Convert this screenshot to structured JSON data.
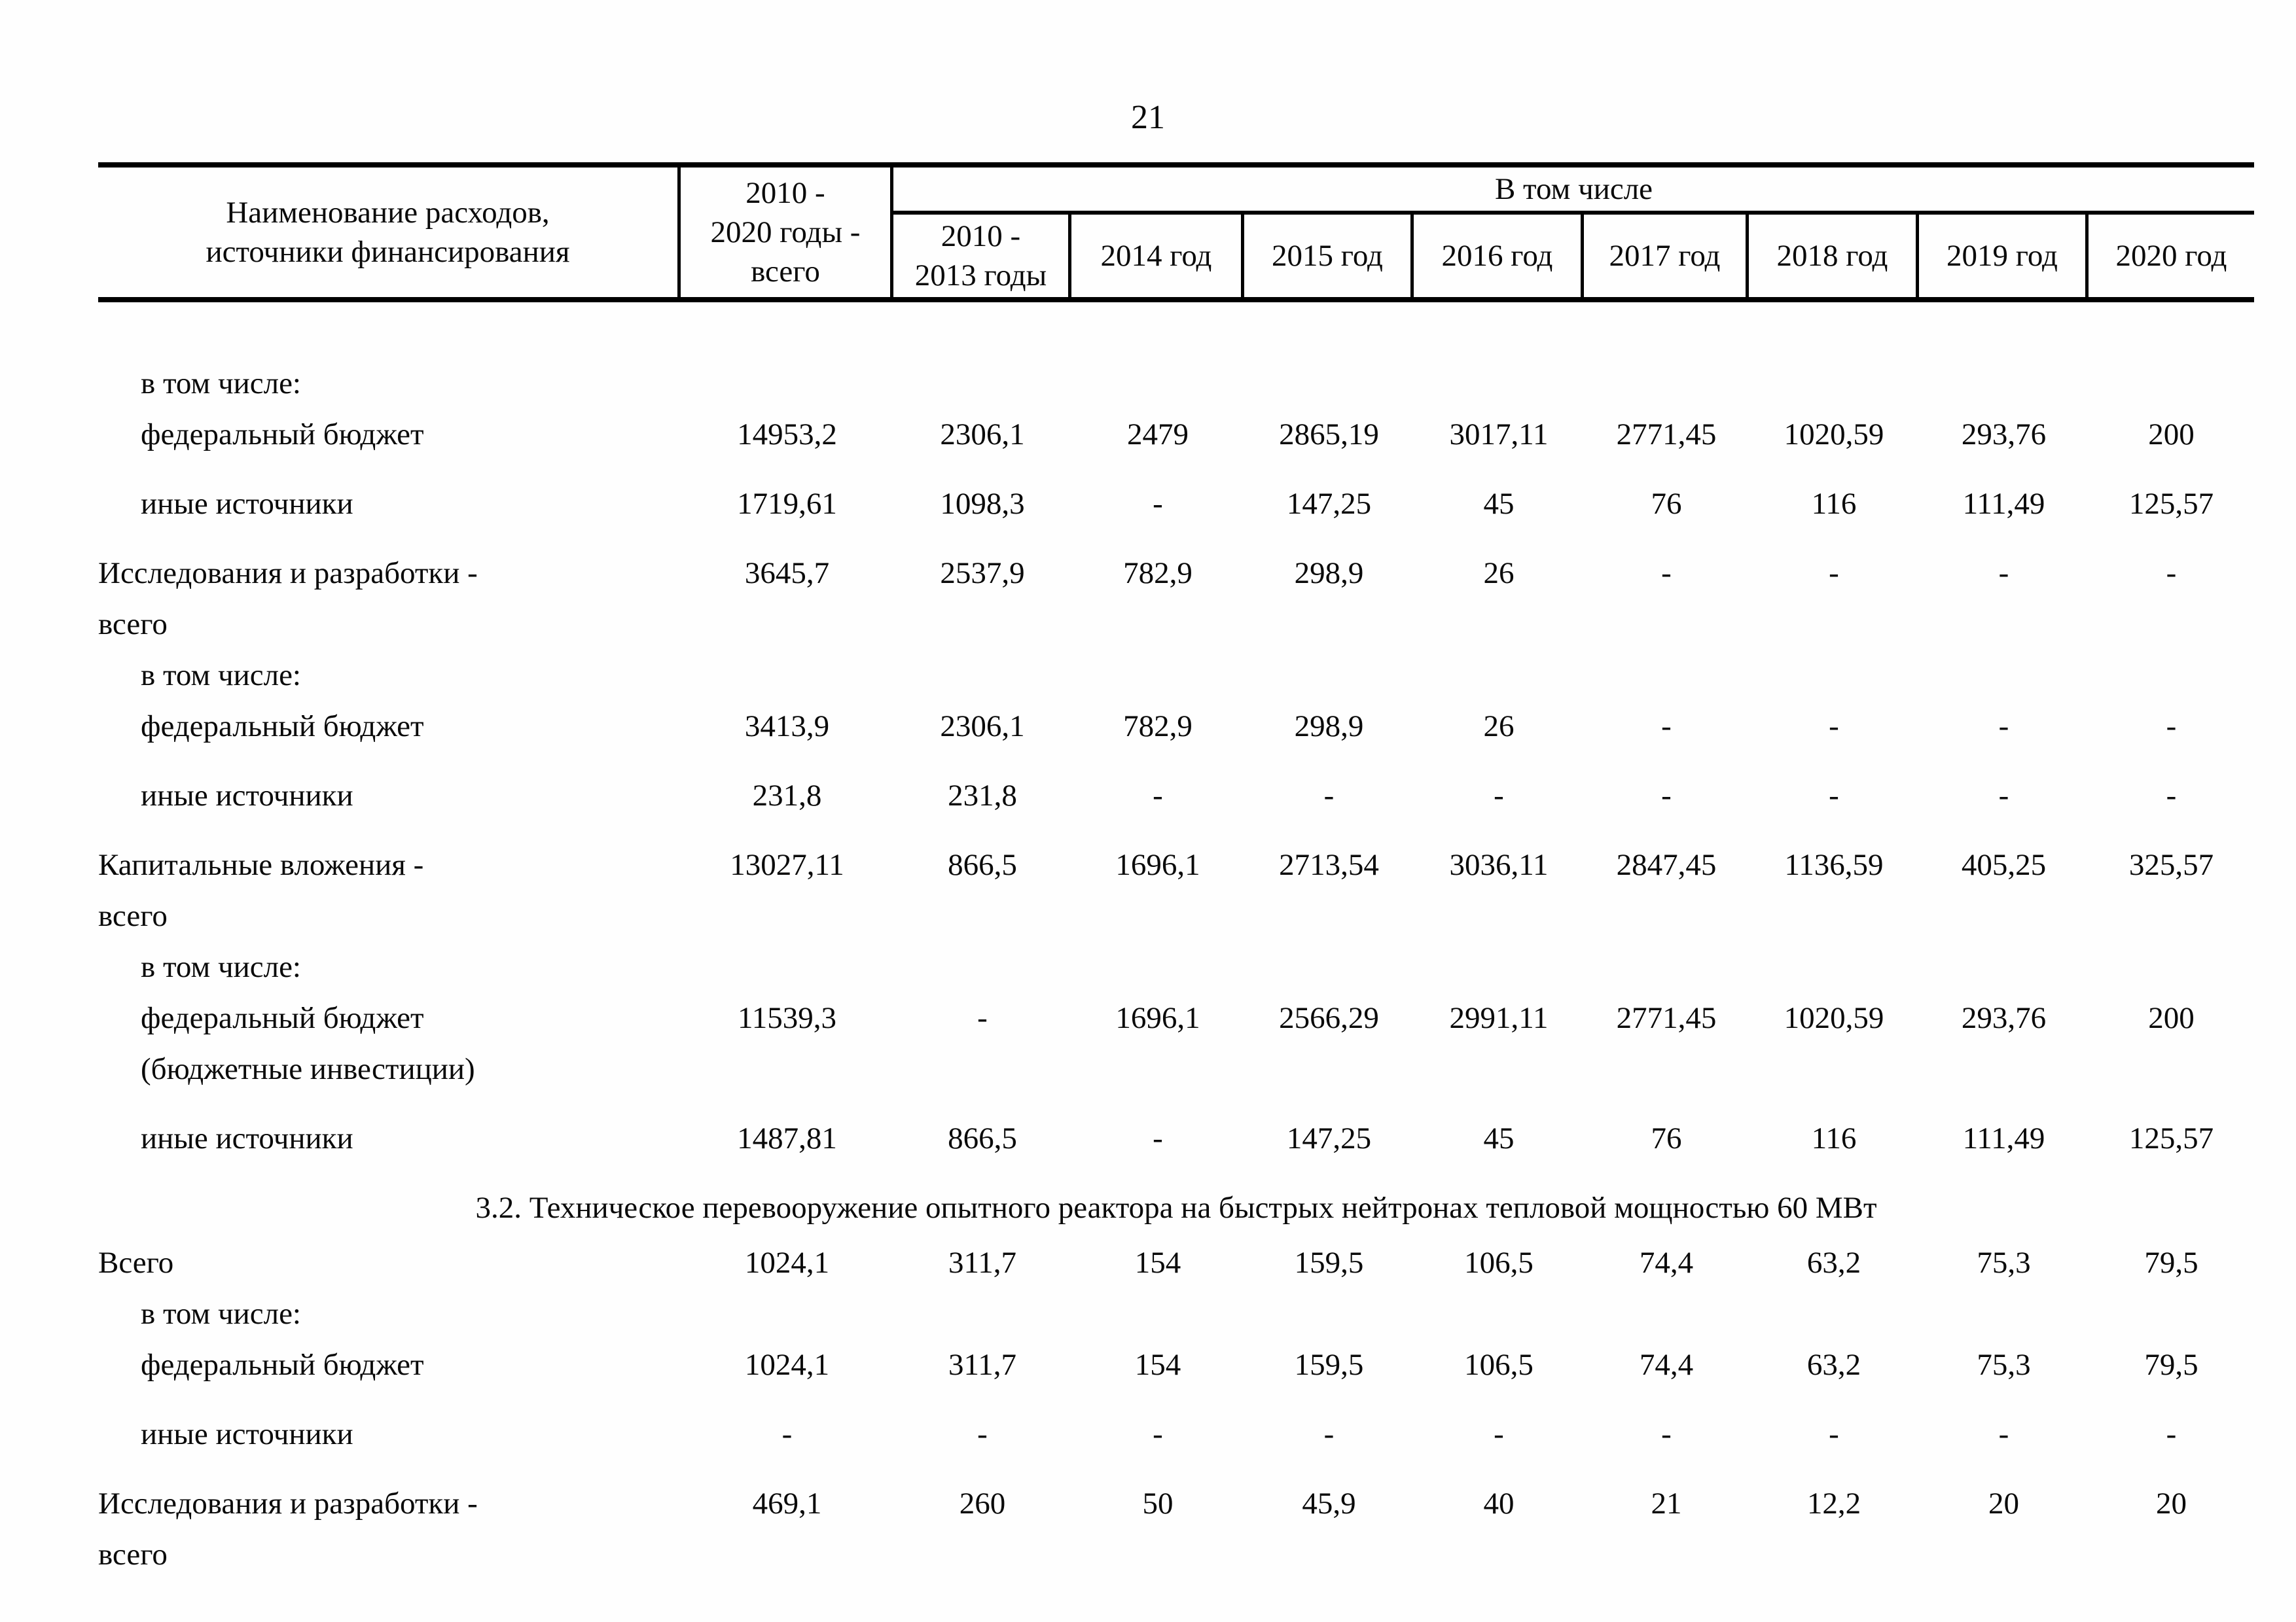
{
  "page": {
    "number": "21"
  },
  "table": {
    "header": {
      "name_col_lines": [
        "Наименование расходов,",
        "источники финансирования"
      ],
      "total_col_lines": [
        "2010 -",
        "2020 годы -",
        "всего"
      ],
      "group_label": "В том числе",
      "year_cols": [
        {
          "lines": [
            "2010 -",
            "2013 годы"
          ]
        },
        {
          "lines": [
            "2014 год"
          ]
        },
        {
          "lines": [
            "2015 год"
          ]
        },
        {
          "lines": [
            "2016 год"
          ]
        },
        {
          "lines": [
            "2017 год"
          ]
        },
        {
          "lines": [
            "2018 год"
          ]
        },
        {
          "lines": [
            "2019 год"
          ]
        },
        {
          "lines": [
            "2020 год"
          ]
        }
      ]
    },
    "rows": [
      {
        "type": "sub-label",
        "label_lines": [
          "в том числе:"
        ],
        "values": []
      },
      {
        "type": "sub-data",
        "label_lines": [
          "федеральный бюджет"
        ],
        "values": [
          "14953,2",
          "2306,1",
          "2479",
          "2865,19",
          "3017,11",
          "2771,45",
          "1020,59",
          "293,76",
          "200"
        ]
      },
      {
        "type": "sub-data",
        "label_lines": [
          "иные источники"
        ],
        "values": [
          "1719,61",
          "1098,3",
          "-",
          "147,25",
          "45",
          "76",
          "116",
          "111,49",
          "125,57"
        ]
      },
      {
        "type": "group",
        "label_lines": [
          "Исследования и разработки -",
          "всего"
        ],
        "values": [
          "3645,7",
          "2537,9",
          "782,9",
          "298,9",
          "26",
          "-",
          "-",
          "-",
          "-"
        ]
      },
      {
        "type": "sub-label",
        "label_lines": [
          "в том числе:"
        ],
        "values": []
      },
      {
        "type": "sub-data",
        "label_lines": [
          "федеральный бюджет"
        ],
        "values": [
          "3413,9",
          "2306,1",
          "782,9",
          "298,9",
          "26",
          "-",
          "-",
          "-",
          "-"
        ]
      },
      {
        "type": "sub-data",
        "label_lines": [
          "иные источники"
        ],
        "values": [
          "231,8",
          "231,8",
          "-",
          "-",
          "-",
          "-",
          "-",
          "-",
          "-"
        ]
      },
      {
        "type": "group",
        "label_lines": [
          "Капитальные вложения -",
          "всего"
        ],
        "values": [
          "13027,11",
          "866,5",
          "1696,1",
          "2713,54",
          "3036,11",
          "2847,45",
          "1136,59",
          "405,25",
          "325,57"
        ]
      },
      {
        "type": "sub-label",
        "label_lines": [
          "в том числе:"
        ],
        "values": []
      },
      {
        "type": "sub-data",
        "label_lines": [
          "федеральный бюджет",
          "(бюджетные инвестиции)"
        ],
        "values": [
          "11539,3",
          "-",
          "1696,1",
          "2566,29",
          "2991,11",
          "2771,45",
          "1020,59",
          "293,76",
          "200"
        ]
      },
      {
        "type": "sub-data",
        "label_lines": [
          "иные источники"
        ],
        "values": [
          "1487,81",
          "866,5",
          "-",
          "147,25",
          "45",
          "76",
          "116",
          "111,49",
          "125,57"
        ]
      },
      {
        "type": "section",
        "label_lines": [
          "3.2. Техническое перевооружение опытного реактора на быстрых нейтронах тепловой мощностью 60 МВт"
        ],
        "values": []
      },
      {
        "type": "group",
        "label_lines": [
          "Всего"
        ],
        "values": [
          "1024,1",
          "311,7",
          "154",
          "159,5",
          "106,5",
          "74,4",
          "63,2",
          "75,3",
          "79,5"
        ]
      },
      {
        "type": "sub-label",
        "label_lines": [
          "в том числе:"
        ],
        "values": []
      },
      {
        "type": "sub-data",
        "label_lines": [
          "федеральный бюджет"
        ],
        "values": [
          "1024,1",
          "311,7",
          "154",
          "159,5",
          "106,5",
          "74,4",
          "63,2",
          "75,3",
          "79,5"
        ]
      },
      {
        "type": "sub-data",
        "label_lines": [
          "иные источники"
        ],
        "values": [
          "-",
          "-",
          "-",
          "-",
          "-",
          "-",
          "-",
          "-",
          "-"
        ]
      },
      {
        "type": "group",
        "label_lines": [
          "Исследования и разработки -",
          "всего"
        ],
        "values": [
          "469,1",
          "260",
          "50",
          "45,9",
          "40",
          "21",
          "12,2",
          "20",
          "20"
        ]
      }
    ]
  }
}
